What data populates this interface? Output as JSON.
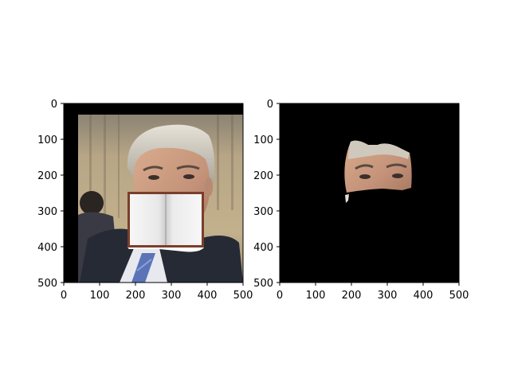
{
  "figure": {
    "panels": [
      {
        "name": "left-panel",
        "content": "photo with book overlay",
        "x_ticks": [
          "0",
          "100",
          "200",
          "300",
          "400",
          "500"
        ],
        "y_ticks": [
          "0",
          "100",
          "200",
          "300",
          "400",
          "500"
        ]
      },
      {
        "name": "right-panel",
        "content": "segmented face region on black",
        "x_ticks": [
          "0",
          "100",
          "200",
          "300",
          "400",
          "500"
        ],
        "y_ticks": [
          "0",
          "100",
          "200",
          "300",
          "400",
          "500"
        ]
      }
    ]
  },
  "colors": {
    "background": "#ffffff",
    "axis": "#000000",
    "black_fill": "#000000",
    "skin": "#c99a7a",
    "hair": "#cfcac0",
    "suit": "#262a35",
    "tie": "#5b74b8",
    "book_border": "#7a3f2a",
    "book_page": "#f3f3f3",
    "office_bg": "#b4a488"
  }
}
